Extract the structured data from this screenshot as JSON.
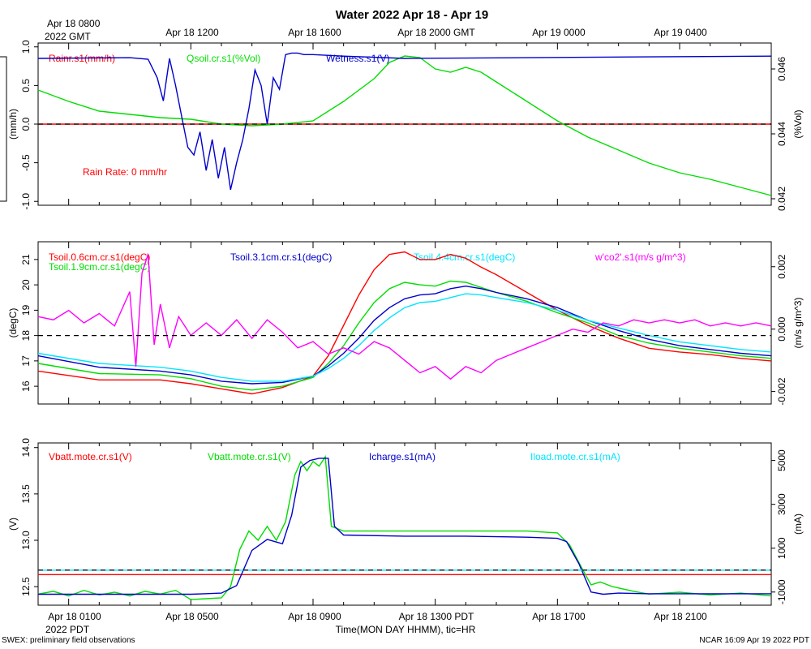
{
  "title": "Water 2022 Apr 18 - Apr 19",
  "top_axis": {
    "ticks": [
      "Apr 18 0800",
      "Apr 18 1200",
      "Apr 18 1600",
      "Apr 18 2000 GMT",
      "Apr 19 0000",
      "Apr 19 0400"
    ],
    "sublabel": "2022 GMT"
  },
  "bottom_axis": {
    "ticks": [
      "Apr 18 0100",
      "Apr 18 0500",
      "Apr 18 0900",
      "Apr 18 1300 PDT",
      "Apr 18 1700",
      "Apr 18 2100"
    ],
    "sublabel": "2022 PDT",
    "xlabel": "Time(MON DAY HHMM), tic=HR"
  },
  "footer": {
    "left": "SWEX: preliminary field observations",
    "right": "NCAR 16:09 Apr 19 2022 PDT"
  },
  "colors": {
    "red": "#ff0000",
    "green": "#00dd00",
    "blue": "#0000cc",
    "cyan": "#00e5ff",
    "magenta": "#ff00ff",
    "black": "#000000"
  },
  "chart_data": [
    {
      "type": "line",
      "panel": "water",
      "x_unit": "hours since Apr 18 0000 PDT",
      "xlim": [
        0,
        24
      ],
      "left_axis": {
        "label": "(mm/h)",
        "ylim": [
          -1.05,
          1.05
        ],
        "ticks": [
          "-1.0",
          "-0.5",
          "0.0",
          "0.5",
          "1.0"
        ],
        "tick_values": [
          -1.0,
          -0.5,
          0.0,
          0.5,
          1.0
        ]
      },
      "right_axis": {
        "label": "(%Vol)",
        "ylim": [
          0.0418,
          0.0468
        ],
        "ticks": [
          "0.042",
          "0.044",
          "0.046"
        ],
        "tick_values": [
          0.042,
          0.044,
          0.046
        ]
      },
      "reference_line": 0,
      "annotation": "Rain Rate: 0 mm/hr",
      "series": [
        {
          "name": "Rainr.s1(mm/h)",
          "color": "#ff0000",
          "axis": "left",
          "x": [
            0,
            24
          ],
          "y": [
            0,
            0
          ]
        },
        {
          "name": "Qsoil.cr.s1(%Vol)",
          "color": "#00dd00",
          "axis": "right",
          "x": [
            0,
            1,
            2,
            3,
            4,
            5,
            6,
            7,
            8,
            9,
            10,
            11,
            11.5,
            12,
            12.5,
            13,
            13.5,
            14,
            14.5,
            15,
            16,
            17,
            18,
            19,
            20,
            21,
            22,
            23,
            24
          ],
          "y": [
            0.04535,
            0.045,
            0.0447,
            0.0446,
            0.0445,
            0.04445,
            0.0443,
            0.04425,
            0.0443,
            0.0444,
            0.045,
            0.0457,
            0.0462,
            0.0464,
            0.04635,
            0.046,
            0.0459,
            0.04605,
            0.0459,
            0.0456,
            0.045,
            0.0444,
            0.0439,
            0.0435,
            0.0431,
            0.0428,
            0.0426,
            0.04235,
            0.0421
          ]
        },
        {
          "name": "Wetness.s1(V)",
          "color": "#0000cc",
          "axis": "left",
          "x": [
            0,
            3,
            3.6,
            3.9,
            4.1,
            4.3,
            4.5,
            4.7,
            4.9,
            5.1,
            5.3,
            5.5,
            5.7,
            5.9,
            6.1,
            6.3,
            6.5,
            6.7,
            6.9,
            7.1,
            7.3,
            7.5,
            7.7,
            7.9,
            8.1,
            8.3,
            8.5,
            8.7,
            9,
            10,
            12,
            16,
            20,
            24
          ],
          "y": [
            0.85,
            0.86,
            0.84,
            0.6,
            0.3,
            0.85,
            0.5,
            0.1,
            -0.3,
            -0.4,
            -0.1,
            -0.6,
            -0.2,
            -0.7,
            -0.3,
            -0.85,
            -0.5,
            -0.2,
            0.2,
            0.7,
            0.5,
            0.0,
            0.6,
            0.45,
            0.9,
            0.92,
            0.92,
            0.9,
            0.9,
            0.88,
            0.85,
            0.86,
            0.87,
            0.88
          ]
        }
      ],
      "legend": [
        "Rainr.s1(mm/h)",
        "Qsoil.cr.s1(%Vol)",
        "Wetness.s1(V)"
      ]
    },
    {
      "type": "line",
      "panel": "soil_temperature",
      "x_unit": "hours since Apr 18 0000 PDT",
      "xlim": [
        0,
        24
      ],
      "left_axis": {
        "label": "(degC)",
        "ylim": [
          15.3,
          21.7
        ],
        "ticks": [
          "16",
          "17",
          "18",
          "19",
          "20",
          "21"
        ],
        "tick_values": [
          16,
          17,
          18,
          19,
          20,
          21
        ]
      },
      "right_axis": {
        "label": "(m/s g/m^3)",
        "ylim": [
          -0.0024,
          0.0028
        ],
        "ticks": [
          "-0.002",
          "0.000",
          "0.002"
        ],
        "tick_values": [
          -0.002,
          0.0,
          0.002
        ]
      },
      "reference_line": 18,
      "series": [
        {
          "name": "Tsoil.0.6cm.cr.s1(degC)",
          "color": "#ff0000",
          "axis": "left",
          "x": [
            0,
            2,
            4,
            5,
            6,
            7,
            8,
            9,
            9.5,
            10,
            10.5,
            11,
            11.5,
            12,
            12.5,
            13,
            13.5,
            14,
            14.5,
            15,
            16,
            17,
            18,
            19,
            20,
            21,
            22,
            23,
            24
          ],
          "y": [
            16.6,
            16.25,
            16.25,
            16.1,
            15.9,
            15.7,
            15.95,
            16.4,
            17.2,
            18.4,
            19.6,
            20.6,
            21.2,
            21.3,
            21.0,
            21.0,
            21.2,
            21.05,
            20.7,
            20.4,
            19.7,
            19.0,
            18.4,
            17.9,
            17.5,
            17.35,
            17.25,
            17.1,
            17.0
          ]
        },
        {
          "name": "Tsoil.1.9cm.cr.s1(degC)",
          "color": "#00dd00",
          "axis": "left",
          "x": [
            0,
            2,
            4,
            5,
            6,
            7,
            8,
            9,
            9.5,
            10,
            10.5,
            11,
            11.5,
            12,
            12.5,
            13,
            13.5,
            14,
            14.5,
            15,
            16,
            17,
            18,
            19,
            20,
            21,
            22,
            23,
            24
          ],
          "y": [
            16.9,
            16.5,
            16.45,
            16.3,
            16.0,
            15.85,
            16.0,
            16.35,
            16.9,
            17.6,
            18.5,
            19.3,
            19.85,
            20.1,
            20.0,
            19.95,
            20.15,
            20.1,
            19.9,
            19.7,
            19.35,
            18.9,
            18.5,
            18.0,
            17.7,
            17.5,
            17.35,
            17.2,
            17.1
          ]
        },
        {
          "name": "Tsoil.3.1cm.cr.s1(degC)",
          "color": "#0000cc",
          "axis": "left",
          "x": [
            0,
            2,
            4,
            5,
            6,
            7,
            8,
            9,
            9.5,
            10,
            10.5,
            11,
            11.5,
            12,
            12.5,
            13,
            13.5,
            14,
            14.5,
            15,
            16,
            17,
            18,
            19,
            20,
            21,
            22,
            23,
            24
          ],
          "y": [
            17.2,
            16.75,
            16.6,
            16.45,
            16.2,
            16.1,
            16.15,
            16.4,
            16.8,
            17.3,
            17.9,
            18.6,
            19.1,
            19.45,
            19.6,
            19.65,
            19.85,
            19.95,
            19.85,
            19.7,
            19.45,
            19.1,
            18.6,
            18.2,
            17.85,
            17.6,
            17.45,
            17.3,
            17.2
          ]
        },
        {
          "name": "Tsoil.4.4cm.cr.s1(degC)",
          "color": "#00e5ff",
          "axis": "left",
          "x": [
            0,
            2,
            4,
            5,
            6,
            7,
            8,
            9,
            9.5,
            10,
            10.5,
            11,
            11.5,
            12,
            12.5,
            13,
            13.5,
            14,
            14.5,
            15,
            16,
            17,
            18,
            19,
            20,
            21,
            22,
            23,
            24
          ],
          "y": [
            17.3,
            16.9,
            16.75,
            16.6,
            16.35,
            16.2,
            16.2,
            16.4,
            16.7,
            17.1,
            17.6,
            18.2,
            18.7,
            19.1,
            19.3,
            19.35,
            19.5,
            19.65,
            19.6,
            19.5,
            19.3,
            19.0,
            18.6,
            18.3,
            18.0,
            17.75,
            17.6,
            17.45,
            17.35
          ]
        },
        {
          "name": "w'co2'.s1(m/s g/m^3)",
          "color": "#ff00ff",
          "axis": "right",
          "x": [
            0,
            0.5,
            1,
            1.5,
            2,
            2.5,
            3,
            3.2,
            3.4,
            3.6,
            3.8,
            4,
            4.3,
            4.6,
            5,
            5.5,
            6,
            6.5,
            7,
            7.5,
            8,
            8.5,
            9,
            9.5,
            10,
            10.5,
            11,
            11.5,
            12,
            12.5,
            13,
            13.5,
            14,
            14.5,
            15,
            15.5,
            16,
            16.5,
            17,
            17.5,
            18,
            18.5,
            19,
            19.5,
            20,
            20.5,
            21,
            21.5,
            22,
            22.5,
            23,
            23.5,
            24
          ],
          "y": [
            0.0004,
            0.0003,
            0.0006,
            0.0002,
            0.0005,
            0.0001,
            0.0012,
            -0.0012,
            0.0018,
            0.0024,
            -0.0005,
            0.0008,
            -0.0006,
            0.0004,
            -0.0002,
            0.0002,
            -0.0002,
            0.0003,
            -0.0003,
            0.0003,
            -0.0001,
            -0.0006,
            -0.0004,
            -0.0008,
            -0.0006,
            -0.0008,
            -0.0004,
            -0.0006,
            -0.001,
            -0.0014,
            -0.0012,
            -0.0016,
            -0.0012,
            -0.0014,
            -0.001,
            -0.0008,
            -0.0006,
            -0.0004,
            -0.0002,
            0.0,
            -0.0001,
            0.0002,
            0.0001,
            0.0003,
            0.0002,
            0.0003,
            0.0002,
            0.0003,
            0.0001,
            0.0002,
            0.0001,
            0.0002,
            0.0001
          ]
        }
      ],
      "legend": [
        "Tsoil.0.6cm.cr.s1(degC)",
        "Tsoil.1.9cm.cr.s1(degC)",
        "Tsoil.3.1cm.cr.s1(degC)",
        "Tsoil.4.4cm.cr.s1(degC)",
        "w'co2'.s1(m/s g/m^3)"
      ]
    },
    {
      "type": "line",
      "panel": "power",
      "x_unit": "hours since Apr 18 0000 PDT",
      "xlim": [
        0,
        24
      ],
      "left_axis": {
        "label": "(V)",
        "ylim": [
          12.3,
          14.05
        ],
        "ticks": [
          "12.5",
          "13.0",
          "13.5",
          "14.0"
        ],
        "tick_values": [
          12.5,
          13.0,
          13.5,
          14.0
        ]
      },
      "right_axis": {
        "label": "(mA)",
        "ylim": [
          -1600,
          5800
        ],
        "ticks": [
          "-1000",
          "1000",
          "3000",
          "5000"
        ],
        "tick_values": [
          -1000,
          1000,
          3000,
          5000
        ]
      },
      "reference_line_right": 0,
      "series": [
        {
          "name": "Vbatt.mote.cr.s1(V)",
          "color": "#ff0000",
          "axis": "left",
          "x": [
            0,
            24
          ],
          "y": [
            12.63,
            12.63
          ]
        },
        {
          "name": "Vbatt.mote.cr.s1(V)",
          "color": "#00dd00",
          "axis": "left",
          "x": [
            0,
            0.5,
            1,
            1.5,
            2,
            2.5,
            3,
            3.5,
            4,
            4.5,
            5,
            5.5,
            6,
            6.3,
            6.6,
            6.9,
            7.2,
            7.5,
            7.8,
            8.1,
            8.4,
            8.6,
            8.8,
            9.0,
            9.2,
            9.4,
            9.6,
            10,
            12,
            14,
            16,
            17,
            17.4,
            17.8,
            18.1,
            18.4,
            18.8,
            19.5,
            20,
            21,
            22,
            23,
            24
          ],
          "y": [
            12.42,
            12.45,
            12.4,
            12.46,
            12.41,
            12.44,
            12.4,
            12.45,
            12.42,
            12.46,
            12.36,
            12.37,
            12.38,
            12.5,
            12.9,
            13.1,
            13.0,
            13.15,
            13.0,
            13.2,
            13.7,
            13.85,
            13.75,
            13.85,
            13.8,
            13.9,
            13.15,
            13.1,
            13.1,
            13.1,
            13.1,
            13.08,
            12.95,
            12.7,
            12.52,
            12.55,
            12.5,
            12.45,
            12.42,
            12.44,
            12.41,
            12.43,
            12.4
          ]
        },
        {
          "name": "Icharge.s1(mA)",
          "color": "#0000cc",
          "axis": "right",
          "x": [
            0,
            2,
            4,
            5,
            6,
            6.5,
            7,
            7.5,
            8,
            8.3,
            8.6,
            8.9,
            9.2,
            9.5,
            9.7,
            10,
            12,
            14,
            16,
            17,
            17.3,
            17.7,
            18.1,
            18.5,
            19,
            20,
            22,
            24
          ],
          "y": [
            -1100,
            -1100,
            -1100,
            -1100,
            -1050,
            -700,
            900,
            1400,
            1200,
            2500,
            4700,
            5000,
            5100,
            5100,
            2000,
            1600,
            1550,
            1550,
            1500,
            1450,
            1300,
            300,
            -1000,
            -1100,
            -1050,
            -1080,
            -1080,
            -1080
          ]
        },
        {
          "name": "Iload.mote.cr.s1(mA)",
          "color": "#00e5ff",
          "axis": "right",
          "x": [
            0,
            24
          ],
          "y": [
            0,
            0
          ]
        }
      ],
      "legend": [
        "Vbatt.mote.cr.s1(V)",
        "Vbatt.mote.cr.s1(V)",
        "Icharge.s1(mA)",
        "Iload.mote.cr.s1(mA)"
      ]
    }
  ]
}
